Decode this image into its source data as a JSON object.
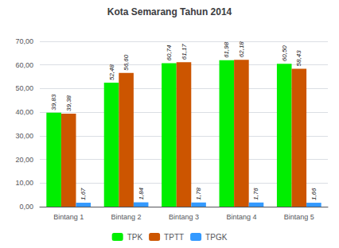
{
  "chart_data": {
    "type": "bar",
    "title": "Kota Semarang Tahun 2014",
    "categories": [
      "Bintang 1",
      "Bintang 2",
      "Bintang 3",
      "Bintang 4",
      "Bintang 5"
    ],
    "series": [
      {
        "name": "TPK",
        "color": "#00EE00",
        "values": [
          39.83,
          52.48,
          60.74,
          61.98,
          60.5
        ],
        "value_labels": [
          "39,83",
          "52,48",
          "60,74",
          "61,98",
          "60,50"
        ]
      },
      {
        "name": "TPTT",
        "color": "#CC5500",
        "values": [
          39.38,
          56.6,
          61.17,
          62.18,
          58.43
        ],
        "value_labels": [
          "39,38",
          "56,60",
          "61,17",
          "62,18",
          "58,43"
        ]
      },
      {
        "name": "TPGK",
        "color": "#3399FF",
        "values": [
          1.67,
          1.84,
          1.78,
          1.76,
          1.66
        ],
        "value_labels": [
          "1,67",
          "1,84",
          "1,78",
          "1,76",
          "1,66"
        ]
      }
    ],
    "ylim": [
      0,
      70
    ],
    "yticks": [
      {
        "value": 0,
        "label": "0,00"
      },
      {
        "value": 10,
        "label": "10,00"
      },
      {
        "value": 20,
        "label": "20,00"
      },
      {
        "value": 30,
        "label": "30,00"
      },
      {
        "value": 40,
        "label": "40,00"
      },
      {
        "value": 50,
        "label": "50,00"
      },
      {
        "value": 60,
        "label": "60,00"
      },
      {
        "value": 70,
        "label": "70,00"
      }
    ],
    "grid": true,
    "legend": "bottom",
    "data_labels": true
  }
}
